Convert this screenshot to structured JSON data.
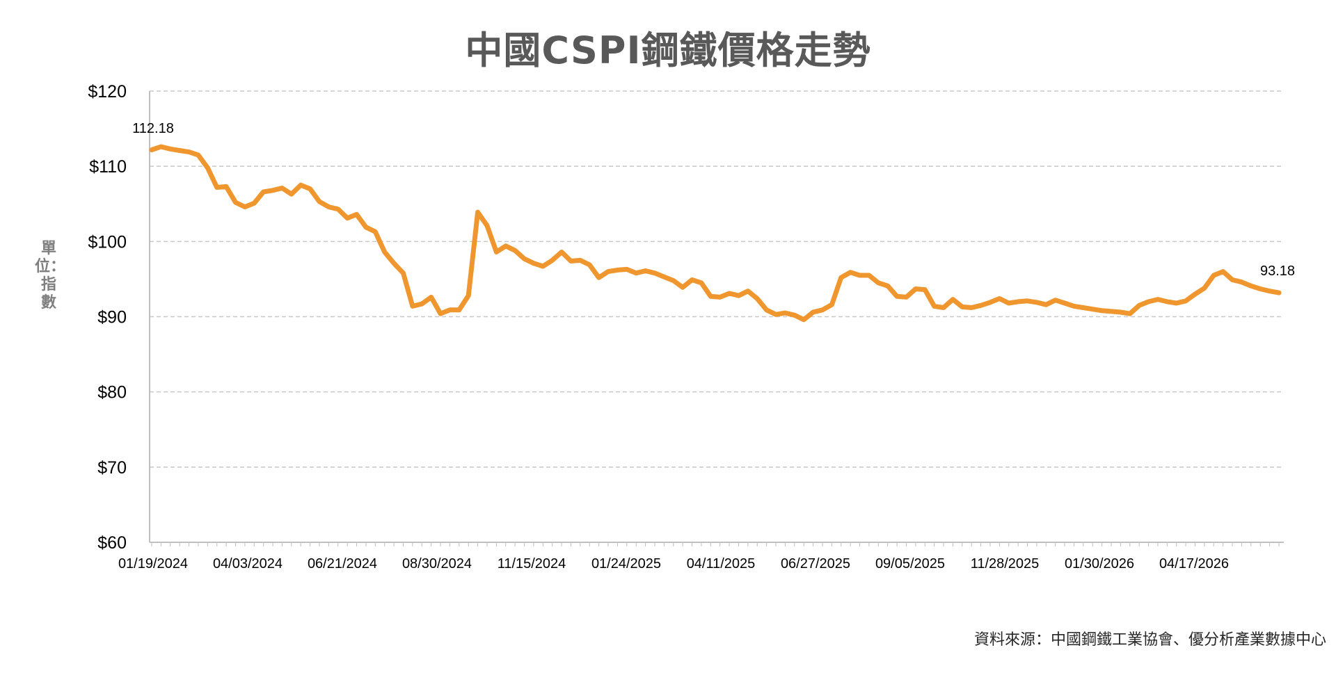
{
  "chart_data": {
    "type": "line",
    "title": "中國CSPI鋼鐵價格走勢",
    "ylabel": "單位：指數",
    "xlabel": "",
    "ylim": [
      60,
      120
    ],
    "yticks": [
      60,
      70,
      80,
      90,
      100,
      110,
      120
    ],
    "ytick_labels": [
      "$60",
      "$70",
      "$80",
      "$90",
      "$100",
      "$110",
      "$120"
    ],
    "xtick_labels": [
      "01/19/2024",
      "04/03/2024",
      "06/21/2024",
      "08/30/2024",
      "11/15/2024",
      "01/24/2025",
      "04/11/2025",
      "06/27/2025",
      "09/05/2025",
      "11/28/2025",
      "01/30/2026",
      "04/17/2026"
    ],
    "grid": true,
    "line_color": "#f0962e",
    "series": [
      {
        "values": [
          112.18,
          112.6,
          112.3,
          112.1,
          111.9,
          111.5,
          109.8,
          107.2,
          107.3,
          105.2,
          104.6,
          105.1,
          106.6,
          106.8,
          107.1,
          106.3,
          107.5,
          107.0,
          105.3,
          104.6,
          104.3,
          103.1,
          103.6,
          101.9,
          101.3,
          98.6,
          97.1,
          95.8,
          91.4,
          91.7,
          92.6,
          90.4,
          90.9,
          90.9,
          92.8,
          103.9,
          102.1,
          98.6,
          99.4,
          98.8,
          97.7,
          97.1,
          96.7,
          97.5,
          98.6,
          97.4,
          97.5,
          96.9,
          95.2,
          96.0,
          96.2,
          96.3,
          95.8,
          96.1,
          95.8,
          95.3,
          94.8,
          93.9,
          94.9,
          94.5,
          92.7,
          92.6,
          93.1,
          92.8,
          93.4,
          92.4,
          90.9,
          90.3,
          90.5,
          90.2,
          89.6,
          90.6,
          90.9,
          91.6,
          95.2,
          95.9,
          95.5,
          95.5,
          94.5,
          94.1,
          92.7,
          92.6,
          93.7,
          93.6,
          91.4,
          91.2,
          92.3,
          91.3,
          91.2,
          91.5,
          91.9,
          92.4,
          91.8,
          92.0,
          92.1,
          91.9,
          91.6,
          92.2,
          91.8,
          91.4,
          91.2,
          91.0,
          90.8,
          90.7,
          90.6,
          90.4,
          91.5,
          92.0,
          92.3,
          92.0,
          91.8,
          92.1,
          93.0,
          93.8,
          95.5,
          96.0,
          94.9,
          94.6,
          94.1,
          93.7,
          93.4,
          93.18
        ]
      }
    ],
    "annotations": [
      {
        "text": "112.18",
        "point": "first"
      },
      {
        "text": "93.18",
        "point": "last"
      }
    ]
  },
  "source_note": "資料來源：中國鋼鐵工業協會、優分析產業數據中心"
}
